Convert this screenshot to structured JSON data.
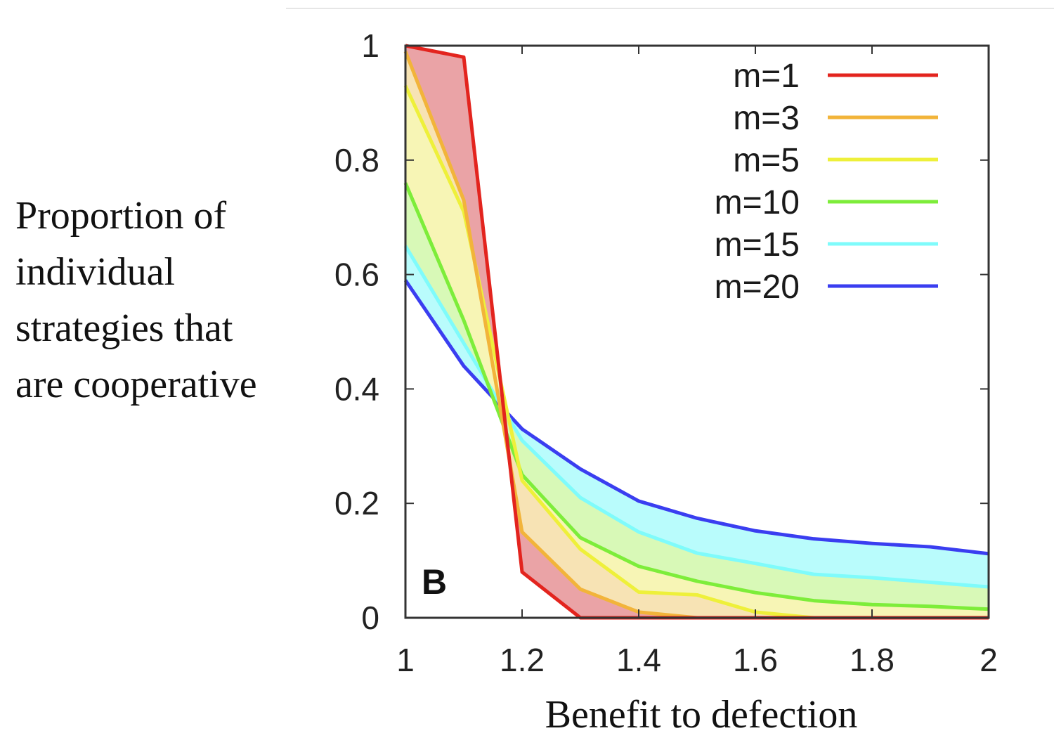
{
  "chart_data": {
    "type": "area",
    "panel_label": "B",
    "title": "",
    "xlabel": "Benefit to defection",
    "ylabel_lines": [
      "Proportion of",
      "individual",
      "strategies that",
      "are cooperative"
    ],
    "xlim": [
      1,
      2
    ],
    "ylim": [
      0,
      1
    ],
    "x_ticks": [
      1,
      1.2,
      1.4,
      1.6,
      1.8,
      2
    ],
    "x_tick_labels": [
      "1",
      "1.2",
      "1.4",
      "1.6",
      "1.8",
      "2"
    ],
    "y_ticks": [
      0,
      0.2,
      0.4,
      0.6,
      0.8,
      1
    ],
    "y_tick_labels": [
      "0",
      "0.2",
      "0.4",
      "0.6",
      "0.8",
      "1"
    ],
    "grid": false,
    "legend_position": "top-right",
    "x": [
      1.0,
      1.1,
      1.2,
      1.3,
      1.4,
      1.5,
      1.6,
      1.7,
      1.8,
      1.9,
      2.0
    ],
    "series": [
      {
        "name": "m=1",
        "color": "#e3241e",
        "fill": "#eaa3a6",
        "values": [
          1.0,
          0.98,
          0.08,
          0,
          0,
          0,
          0,
          0,
          0,
          0,
          0
        ]
      },
      {
        "name": "m=3",
        "color": "#f2b43a",
        "fill": "#f7e3b4",
        "values": [
          0.99,
          0.73,
          0.15,
          0.05,
          0.01,
          0,
          0,
          0,
          0,
          0,
          0
        ]
      },
      {
        "name": "m=5",
        "color": "#eef03a",
        "fill": "#f7f5b5",
        "values": [
          0.93,
          0.71,
          0.24,
          0.12,
          0.045,
          0.04,
          0.01,
          0,
          0,
          0,
          0
        ]
      },
      {
        "name": "m=10",
        "color": "#7ded3a",
        "fill": "#d8f9b7",
        "values": [
          0.76,
          0.52,
          0.25,
          0.14,
          0.09,
          0.064,
          0.044,
          0.03,
          0.023,
          0.02,
          0.015
        ]
      },
      {
        "name": "m=15",
        "color": "#7ffbfb",
        "fill": "#b9fcfc",
        "values": [
          0.65,
          0.48,
          0.31,
          0.21,
          0.15,
          0.113,
          0.095,
          0.076,
          0.07,
          0.062,
          0.054
        ]
      },
      {
        "name": "m=20",
        "color": "#3a3ef0",
        "fill": null,
        "values": [
          0.59,
          0.44,
          0.33,
          0.26,
          0.204,
          0.174,
          0.152,
          0.138,
          0.13,
          0.124,
          0.112
        ]
      }
    ]
  }
}
